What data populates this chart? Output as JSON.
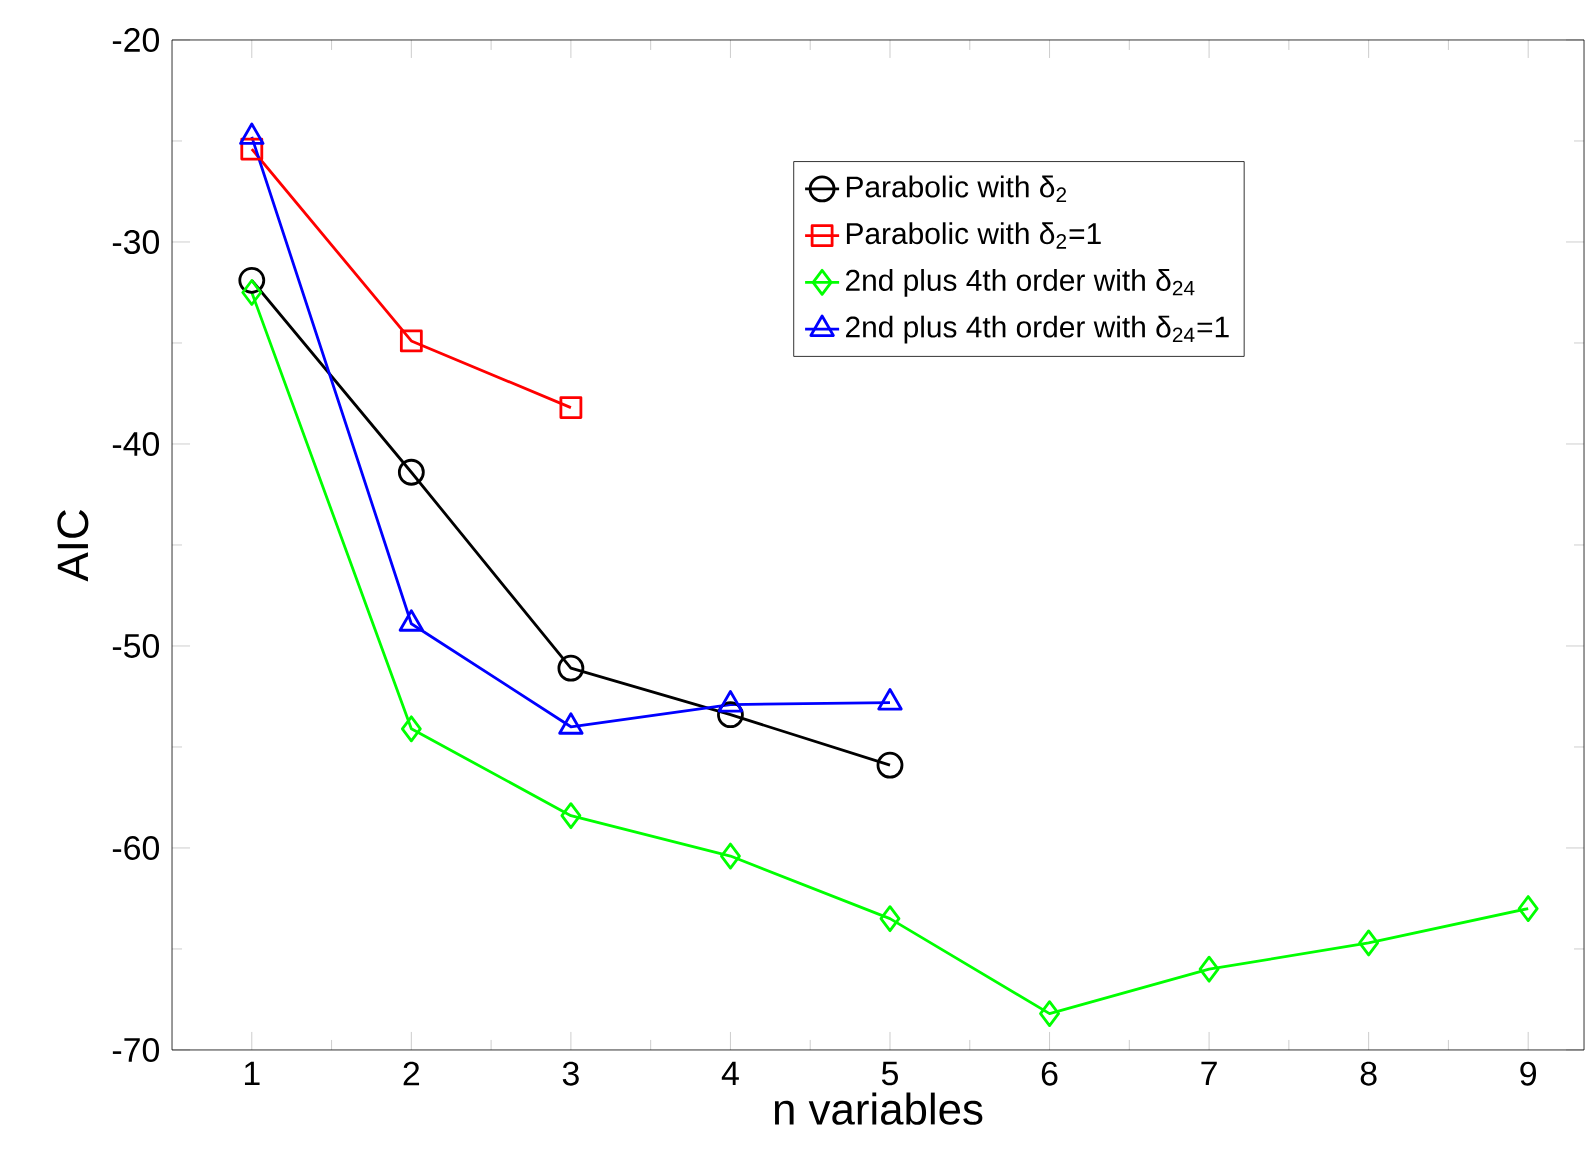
{
  "chart_data": {
    "type": "line",
    "xlabel": "n variables",
    "ylabel": "AIC",
    "xlim": [
      0.5,
      9.35
    ],
    "ylim": [
      -70,
      -20
    ],
    "xticks": [
      1,
      2,
      3,
      4,
      5,
      6,
      7,
      8,
      9
    ],
    "yticks": [
      -70,
      -60,
      -50,
      -40,
      -30,
      -20
    ],
    "legend": "top right",
    "grid": false,
    "line_style": "solid",
    "series": [
      {
        "name": "Parabolic with δ$_{2}$",
        "color": "#000000",
        "marker": "circle",
        "x": [
          1,
          2,
          3,
          4,
          5
        ],
        "values": [
          -31.9,
          -41.4,
          -51.1,
          -53.4,
          -55.9
        ]
      },
      {
        "name": "Parabolic with δ$_{2}$=1",
        "color": "#ff0000",
        "marker": "square",
        "x": [
          1,
          2,
          3
        ],
        "values": [
          -25.4,
          -34.9,
          -38.2
        ]
      },
      {
        "name": "2nd plus 4th order with δ$_{24}$",
        "color": "#00ff00",
        "marker": "diamond",
        "x": [
          1,
          2,
          3,
          4,
          5,
          6,
          7,
          8,
          9
        ],
        "values": [
          -32.5,
          -54.1,
          -58.4,
          -60.4,
          -63.5,
          -68.2,
          -66.0,
          -64.7,
          -63.0
        ]
      },
      {
        "name": "2nd plus 4th order with δ$_{24}$=1",
        "color": "#0000ff",
        "marker": "triangle",
        "x": [
          1,
          2,
          3,
          4,
          5
        ],
        "values": [
          -24.8,
          -48.9,
          -54.0,
          -52.9,
          -52.8
        ]
      }
    ]
  }
}
